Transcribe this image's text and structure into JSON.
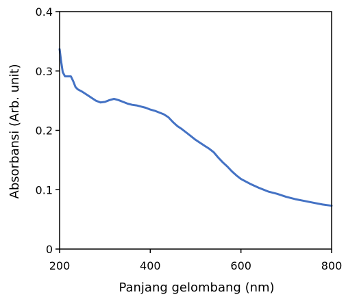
{
  "chart_data": {
    "type": "line",
    "xlabel": "Panjang gelombang (nm)",
    "ylabel": "Absorbansi (Arb. unit)",
    "xlim": [
      200,
      800
    ],
    "ylim": [
      0,
      0.4
    ],
    "xticks": [
      200,
      400,
      600,
      800
    ],
    "yticks": [
      0,
      0.1,
      0.2,
      0.3,
      0.4
    ],
    "xtick_labels": [
      "200",
      "400",
      "600",
      "800"
    ],
    "ytick_labels": [
      "0",
      "0.1",
      "0.2",
      "0.3",
      "0.4"
    ],
    "grid": false,
    "series": [
      {
        "color": "#4472C4",
        "x": [
          200,
          203,
          207,
          212,
          218,
          225,
          230,
          235,
          240,
          250,
          260,
          270,
          280,
          290,
          300,
          310,
          320,
          330,
          340,
          350,
          360,
          370,
          380,
          390,
          400,
          410,
          420,
          430,
          440,
          450,
          460,
          470,
          480,
          490,
          500,
          510,
          520,
          530,
          540,
          550,
          560,
          570,
          580,
          590,
          600,
          620,
          640,
          660,
          680,
          700,
          720,
          740,
          760,
          780,
          800
        ],
        "values": [
          0.337,
          0.318,
          0.298,
          0.291,
          0.291,
          0.291,
          0.283,
          0.273,
          0.269,
          0.265,
          0.26,
          0.255,
          0.25,
          0.247,
          0.248,
          0.251,
          0.253,
          0.251,
          0.248,
          0.245,
          0.243,
          0.242,
          0.24,
          0.238,
          0.235,
          0.233,
          0.23,
          0.227,
          0.222,
          0.214,
          0.207,
          0.202,
          0.196,
          0.19,
          0.184,
          0.179,
          0.174,
          0.169,
          0.163,
          0.154,
          0.146,
          0.139,
          0.131,
          0.124,
          0.118,
          0.11,
          0.103,
          0.097,
          0.093,
          0.088,
          0.084,
          0.081,
          0.078,
          0.075,
          0.073
        ]
      }
    ]
  }
}
